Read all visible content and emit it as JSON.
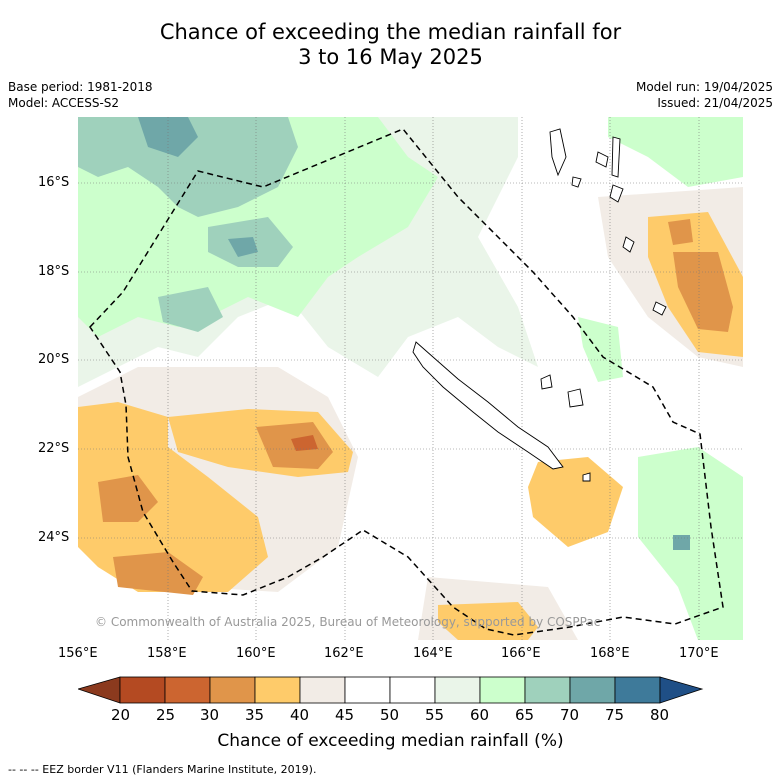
{
  "header": {
    "title_line1": "Chance of exceeding the median rainfall for",
    "title_line2": "3 to 16 May 2025",
    "base_period": "Base period: 1981-2018",
    "model": "Model: ACCESS-S2",
    "model_run": "Model run: 19/04/2025",
    "issued": "Issued: 21/04/2025"
  },
  "map": {
    "lat_labels": [
      "16°S",
      "18°S",
      "20°S",
      "22°S",
      "24°S"
    ],
    "lon_labels": [
      "156°E",
      "158°E",
      "160°E",
      "162°E",
      "164°E",
      "166°E",
      "168°E",
      "170°E"
    ],
    "copyright": "© Commonwealth of Australia 2025, Bureau of Meteorology, supported by COSPPac"
  },
  "colorbar": {
    "ticks": [
      "20",
      "25",
      "30",
      "35",
      "40",
      "45",
      "50",
      "55",
      "60",
      "65",
      "70",
      "75",
      "80"
    ],
    "colors": [
      "#8b3a1e",
      "#b44a22",
      "#cc6530",
      "#e0954a",
      "#fecb6a",
      "#f2ece6",
      "#ffffff",
      "#ffffff",
      "#eaf5e9",
      "#ccffcc",
      "#9fd1bc",
      "#6fa7a8",
      "#3e7a9a",
      "#1f4f86"
    ],
    "label": "Chance of exceeding median rainfall (%)"
  },
  "legend": {
    "eez": "--  --  -- EEZ border V11 (Flanders Marine Institute, 2019)."
  }
}
